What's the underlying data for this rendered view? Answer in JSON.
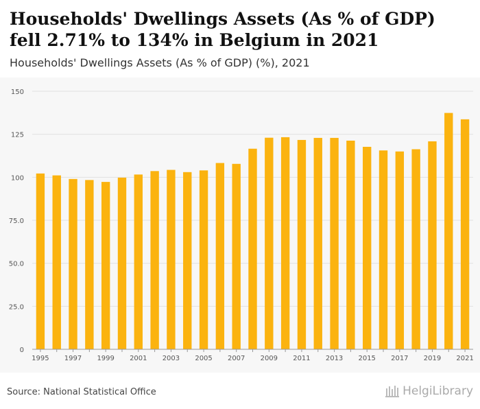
{
  "title": "Households' Dwellings Assets (As % of GDP) fell 2.71% to 134% in Belgium in 2021",
  "subtitle": "Households' Dwellings Assets (As % of GDP) (%), 2021",
  "source": "Source: National Statistical Office",
  "brand": "HelgiLibrary",
  "colors": {
    "bar": "#FBB30F",
    "grid": "#e2e2e2",
    "background": "#f7f7f7"
  },
  "chart_data": {
    "type": "bar",
    "title": "Households' Dwellings Assets (As % of GDP) (%), 2021",
    "xlabel": "",
    "ylabel": "",
    "ylim": [
      0,
      150
    ],
    "yticks": [
      0,
      25,
      50,
      75,
      100,
      125,
      150
    ],
    "ytick_labels": [
      "0",
      "25.0",
      "50.0",
      "75.0",
      "100",
      "125",
      "150"
    ],
    "categories": [
      "1995",
      "1996",
      "1997",
      "1998",
      "1999",
      "2000",
      "2001",
      "2002",
      "2003",
      "2004",
      "2005",
      "2006",
      "2007",
      "2008",
      "2009",
      "2010",
      "2011",
      "2012",
      "2013",
      "2014",
      "2015",
      "2016",
      "2017",
      "2018",
      "2019",
      "2020",
      "2021"
    ],
    "xtick_labels": [
      "1995",
      "",
      "1997",
      "",
      "1999",
      "",
      "2001",
      "",
      "2003",
      "",
      "2005",
      "",
      "2007",
      "",
      "2009",
      "",
      "2011",
      "",
      "2013",
      "",
      "2015",
      "",
      "2017",
      "",
      "2019",
      "",
      "2021"
    ],
    "values": [
      102.2,
      101.1,
      99.0,
      98.4,
      97.3,
      99.8,
      101.6,
      103.6,
      104.3,
      103.0,
      104.0,
      108.3,
      107.8,
      116.6,
      123.0,
      123.3,
      121.7,
      122.9,
      122.9,
      121.3,
      117.7,
      115.6,
      115.0,
      116.3,
      120.9,
      137.4,
      133.7
    ],
    "grid": true,
    "legend": "none"
  }
}
